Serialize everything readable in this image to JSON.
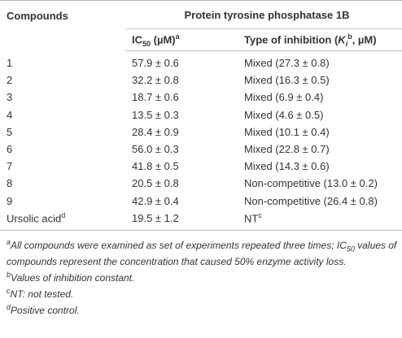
{
  "table": {
    "header": {
      "compounds": "Compounds",
      "group": "Protein tyrosine phosphatase 1B",
      "ic50": {
        "label": "IC",
        "sub": "50",
        "unit": " (µM)",
        "sup": "a"
      },
      "inhibition": {
        "label": "Type of inhibition (",
        "italic": "K",
        "sub": "i",
        "sup": "b",
        "unit": ", µM)"
      }
    },
    "rows": [
      [
        "1",
        "57.9 ± 0.6",
        "Mixed (27.3 ± 0.8)"
      ],
      [
        "2",
        "32.2 ± 0.8",
        "Mixed (16.3 ± 0.5)"
      ],
      [
        "3",
        "18.7 ± 0.6",
        "Mixed (6.9 ± 0.4)"
      ],
      [
        "4",
        "13.5 ± 0.3",
        "Mixed (4.6 ± 0.5)"
      ],
      [
        "5",
        "28.4 ± 0.9",
        "Mixed (10.1 ± 0.4)"
      ],
      [
        "6",
        "56.0 ± 0.3",
        "Mixed (22.8 ± 0.7)"
      ],
      [
        "7",
        "41.8 ± 0.5",
        "Mixed (14.3 ± 0.6)"
      ],
      [
        "8",
        "20.5 ± 0.8",
        "Non-competitive (13.0 ± 0.2)"
      ],
      [
        "9",
        "42.9 ± 0.4",
        "Non-competitive (26.4 ± 0.8)"
      ],
      [
        {
          "text": "Ursolic acid",
          "sup": "d"
        },
        "19.5 ± 1.2",
        {
          "text": "NT",
          "sup": "c"
        }
      ]
    ],
    "footnotes": [
      {
        "mark": "a",
        "text": "All compounds were examined as set of experiments repeated three times; IC",
        "sub": "50",
        "rest": " values of compounds represent the concentration that caused 50% enzyme activity loss."
      },
      {
        "mark": "b",
        "text": "Values of inhibition constant."
      },
      {
        "mark": "c",
        "text": "NT: not tested."
      },
      {
        "mark": "d",
        "text": "Positive control."
      }
    ]
  }
}
